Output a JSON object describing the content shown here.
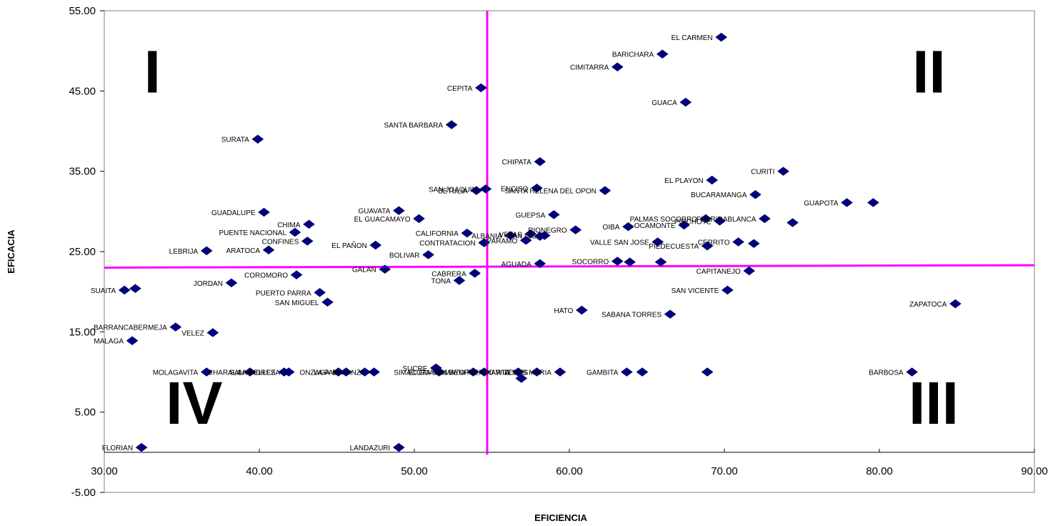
{
  "chart_data": {
    "type": "scatter",
    "title": "",
    "xlabel": "EFICIENCIA",
    "ylabel": "EFICACIA",
    "xlim": [
      30,
      90
    ],
    "ylim": [
      -5,
      55
    ],
    "x_ticks": [
      "30.00",
      "40.00",
      "50.00",
      "60.00",
      "70.00",
      "80.00",
      "90.00"
    ],
    "y_ticks": [
      "55.00",
      "45.00",
      "35.00",
      "25.00",
      "15.00",
      "5.00",
      "-5.00"
    ],
    "grid": false,
    "legend": "none",
    "marker_color": "#000080",
    "divider_color": "#ff00ff",
    "divider_vertical_x": 54.7,
    "divider_horizontal_y": [
      23.0,
      23.3
    ],
    "quadrants": [
      {
        "label": "I",
        "x": 33.1,
        "y": 47.5
      },
      {
        "label": "II",
        "x": 83.2,
        "y": 47.5
      },
      {
        "label": "III",
        "x": 83.5,
        "y": 6.2
      },
      {
        "label": "IV",
        "x": 35.8,
        "y": 6.2
      }
    ],
    "points": [
      {
        "x": 69.8,
        "y": 51.7,
        "label": "EL CARMEN"
      },
      {
        "x": 66.0,
        "y": 49.6,
        "label": "BARICHARA"
      },
      {
        "x": 63.1,
        "y": 48.0,
        "label": "CIMITARRA"
      },
      {
        "x": 54.3,
        "y": 45.4,
        "label": "CEPITA"
      },
      {
        "x": 67.5,
        "y": 43.6,
        "label": "GUACA"
      },
      {
        "x": 52.4,
        "y": 40.8,
        "label": "SANTA  BARBARA"
      },
      {
        "x": 39.9,
        "y": 39.0,
        "label": "SURATA"
      },
      {
        "x": 58.1,
        "y": 36.2,
        "label": "CHIPATA"
      },
      {
        "x": 73.8,
        "y": 35.0,
        "label": "CURITI"
      },
      {
        "x": 69.2,
        "y": 33.9,
        "label": "EL PLAYON"
      },
      {
        "x": 54.6,
        "y": 32.8,
        "label": "SAN JOAQUIN"
      },
      {
        "x": 54.0,
        "y": 32.6,
        "label": "BETULIA"
      },
      {
        "x": 57.9,
        "y": 32.9,
        "label": "ENCISO"
      },
      {
        "x": 62.3,
        "y": 32.6,
        "label": "SANTA HELENA DEL OPON"
      },
      {
        "x": 72.0,
        "y": 32.1,
        "label": "BUCARAMANGA"
      },
      {
        "x": 77.9,
        "y": 31.1,
        "label": "GUAPOTA"
      },
      {
        "x": 79.6,
        "y": 31.1,
        "label": ""
      },
      {
        "x": 40.3,
        "y": 29.9,
        "label": "GUADALUPE"
      },
      {
        "x": 49.0,
        "y": 30.1,
        "label": "GUAVATA"
      },
      {
        "x": 50.3,
        "y": 29.1,
        "label": "EL GUACAMAYO"
      },
      {
        "x": 59.0,
        "y": 29.6,
        "label": "GUEPSA"
      },
      {
        "x": 68.8,
        "y": 29.1,
        "label": "PALMAS SOCORRO"
      },
      {
        "x": 69.7,
        "y": 28.8,
        "label": "PINCHOTE"
      },
      {
        "x": 67.4,
        "y": 28.3,
        "label": "OCAMONTE"
      },
      {
        "x": 72.6,
        "y": 29.1,
        "label": "FLORIDABLANCA"
      },
      {
        "x": 74.4,
        "y": 28.6,
        "label": ""
      },
      {
        "x": 63.8,
        "y": 28.1,
        "label": "OIBA"
      },
      {
        "x": 60.4,
        "y": 27.7,
        "label": "RIONEGRO"
      },
      {
        "x": 43.2,
        "y": 28.4,
        "label": "CHIMA"
      },
      {
        "x": 42.3,
        "y": 27.4,
        "label": "PUENTE NACIONAL"
      },
      {
        "x": 53.4,
        "y": 27.3,
        "label": "CALIFORNIA"
      },
      {
        "x": 56.2,
        "y": 27.0,
        "label": "ALBANIA"
      },
      {
        "x": 57.5,
        "y": 27.2,
        "label": "VETAS"
      },
      {
        "x": 58.4,
        "y": 27.0,
        "label": "SAN GIL"
      },
      {
        "x": 58.1,
        "y": 26.9,
        "label": ""
      },
      {
        "x": 57.2,
        "y": 26.4,
        "label": "PARAMO"
      },
      {
        "x": 54.5,
        "y": 26.1,
        "label": "CONTRATACION"
      },
      {
        "x": 43.1,
        "y": 26.3,
        "label": "CONFINES"
      },
      {
        "x": 40.6,
        "y": 25.2,
        "label": "ARATOCA"
      },
      {
        "x": 36.6,
        "y": 25.1,
        "label": "LEBRIJA"
      },
      {
        "x": 47.5,
        "y": 25.8,
        "label": "EL PAÑON"
      },
      {
        "x": 65.7,
        "y": 26.2,
        "label": "VALLE SAN JOSE"
      },
      {
        "x": 70.9,
        "y": 26.2,
        "label": "CERRITO"
      },
      {
        "x": 71.9,
        "y": 26.0,
        "label": ""
      },
      {
        "x": 68.9,
        "y": 25.7,
        "label": "PIEDECUESTA"
      },
      {
        "x": 50.9,
        "y": 24.6,
        "label": "BOLIVAR"
      },
      {
        "x": 63.1,
        "y": 23.8,
        "label": "SOCORRO"
      },
      {
        "x": 63.9,
        "y": 23.7,
        "label": ""
      },
      {
        "x": 65.9,
        "y": 23.7,
        "label": ""
      },
      {
        "x": 58.1,
        "y": 23.5,
        "label": "AGUADA"
      },
      {
        "x": 71.6,
        "y": 22.6,
        "label": "CAPITANEJO"
      },
      {
        "x": 48.1,
        "y": 22.8,
        "label": "GALAN"
      },
      {
        "x": 53.9,
        "y": 22.3,
        "label": "CABRERA"
      },
      {
        "x": 42.4,
        "y": 22.1,
        "label": "COROMORO"
      },
      {
        "x": 52.9,
        "y": 21.4,
        "label": "TONA"
      },
      {
        "x": 38.2,
        "y": 21.1,
        "label": "JORDAN"
      },
      {
        "x": 43.9,
        "y": 19.9,
        "label": "PUERTO PARRA"
      },
      {
        "x": 31.3,
        "y": 20.2,
        "label": "SUAITA"
      },
      {
        "x": 32.0,
        "y": 20.4,
        "label": ""
      },
      {
        "x": 70.2,
        "y": 20.2,
        "label": "SAN VICENTE"
      },
      {
        "x": 44.4,
        "y": 18.7,
        "label": "SAN MIGUEL"
      },
      {
        "x": 84.9,
        "y": 18.5,
        "label": "ZAPATOCA"
      },
      {
        "x": 60.8,
        "y": 17.7,
        "label": "HATO"
      },
      {
        "x": 66.5,
        "y": 17.2,
        "label": "SABANA TORRES"
      },
      {
        "x": 34.6,
        "y": 15.6,
        "label": "BARRANCABERMEJA"
      },
      {
        "x": 37.0,
        "y": 14.9,
        "label": "VELEZ"
      },
      {
        "x": 31.8,
        "y": 13.9,
        "label": "MALAGA"
      },
      {
        "x": 36.6,
        "y": 10.0,
        "label": "MOLAGAVITA"
      },
      {
        "x": 39.4,
        "y": 10.0,
        "label": "CHARALA"
      },
      {
        "x": 41.6,
        "y": 10.0,
        "label": "SAN ANDRES"
      },
      {
        "x": 41.9,
        "y": 10.0,
        "label": "LA BELLEZA"
      },
      {
        "x": 45.1,
        "y": 10.0,
        "label": "ONZAGA"
      },
      {
        "x": 45.6,
        "y": 10.0,
        "label": "LA PAZ"
      },
      {
        "x": 46.8,
        "y": 10.0,
        "label": ""
      },
      {
        "x": 47.4,
        "y": 10.0,
        "label": "MATANZA"
      },
      {
        "x": 51.4,
        "y": 10.5,
        "label": "SUCRE"
      },
      {
        "x": 51.6,
        "y": 10.0,
        "label": "SIMACOTA"
      },
      {
        "x": 53.8,
        "y": 10.0,
        "label": "EL GUACAMAYO"
      },
      {
        "x": 54.5,
        "y": 10.0,
        "label": "SAN BENITO"
      },
      {
        "x": 56.7,
        "y": 10.0,
        "label": "CHARTA"
      },
      {
        "x": 56.9,
        "y": 9.2,
        "label": ""
      },
      {
        "x": 57.9,
        "y": 10.0,
        "label": "PUERTO WILCHES"
      },
      {
        "x": 59.4,
        "y": 10.0,
        "label": "JESUS MARIA"
      },
      {
        "x": 63.7,
        "y": 10.0,
        "label": "GAMBITA"
      },
      {
        "x": 64.7,
        "y": 10.0,
        "label": ""
      },
      {
        "x": 68.9,
        "y": 10.0,
        "label": ""
      },
      {
        "x": 82.1,
        "y": 10.0,
        "label": "BARBOSA"
      },
      {
        "x": 32.4,
        "y": 0.6,
        "label": "FLORIAN"
      },
      {
        "x": 49.0,
        "y": 0.6,
        "label": "LANDAZURI"
      }
    ]
  }
}
